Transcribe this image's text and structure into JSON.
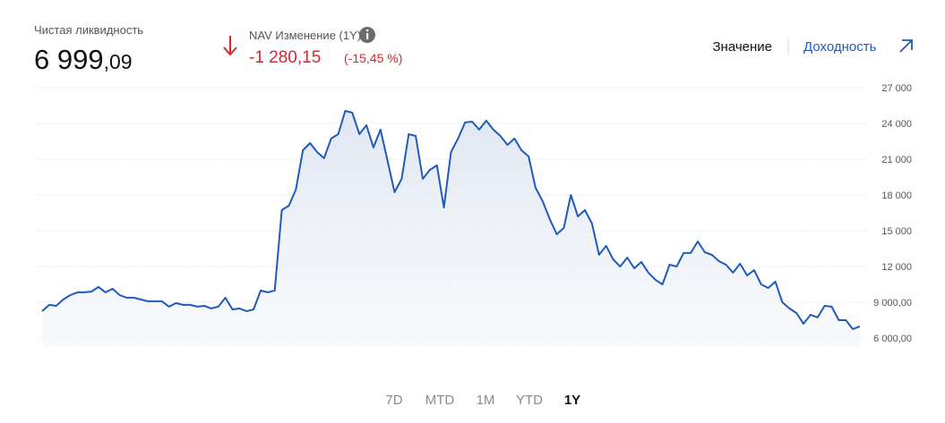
{
  "header": {
    "net_liquidity_label": "Чистая ликвидность",
    "net_liquidity_int": "6 999",
    "net_liquidity_frac": ",09",
    "nav_label": "NAV Изменение (1Y)",
    "nav_change": "-1 280,15",
    "nav_change_pct": "(-15,45 %)"
  },
  "toggle": {
    "value": "Значение",
    "return": "Доходность"
  },
  "tabs": [
    "7D",
    "MTD",
    "1M",
    "YTD",
    "1Y"
  ],
  "active_tab": "1Y",
  "chart_data": {
    "type": "line",
    "color": "#1f5cba",
    "values": [
      8250,
      8780,
      8700,
      9230,
      9600,
      9830,
      9830,
      9900,
      10280,
      9830,
      10130,
      9600,
      9380,
      9380,
      9230,
      9080,
      9080,
      9080,
      8630,
      8930,
      8780,
      8780,
      8630,
      8700,
      8480,
      8630,
      9380,
      8400,
      8480,
      8250,
      8400,
      9980,
      9830,
      9980,
      16730,
      17100,
      18450,
      21750,
      22350,
      21600,
      21080,
      22730,
      23100,
      25050,
      24900,
      23100,
      23850,
      21980,
      23480,
      20850,
      18230,
      19350,
      23100,
      22950,
      19350,
      20100,
      20480,
      16950,
      21600,
      22730,
      24080,
      24150,
      23480,
      24230,
      23480,
      22950,
      22200,
      22730,
      21750,
      21230,
      18600,
      17480,
      15980,
      14700,
      15230,
      18000,
      16200,
      16730,
      15600,
      12980,
      13730,
      12600,
      12000,
      12750,
      11850,
      12380,
      11480,
      10880,
      10500,
      12150,
      12000,
      13130,
      13130,
      14100,
      13200,
      12980,
      12450,
      12150,
      11480,
      12230,
      11250,
      11700,
      10500,
      10200,
      10730,
      9000,
      8480,
      8100,
      7200,
      7950,
      7730,
      8700,
      8630,
      7500,
      7500,
      6750,
      6980
    ],
    "ylim": [
      6000,
      27000
    ],
    "yticks": [
      {
        "value": 27000,
        "label": "27 000"
      },
      {
        "value": 24000,
        "label": "24 000"
      },
      {
        "value": 21000,
        "label": "21 000"
      },
      {
        "value": 18000,
        "label": "18 000"
      },
      {
        "value": 15000,
        "label": "15 000"
      },
      {
        "value": 12000,
        "label": "12 000"
      },
      {
        "value": 9000,
        "label": "9 000,00"
      },
      {
        "value": 6000,
        "label": "6 000,00"
      }
    ],
    "grid": true
  }
}
